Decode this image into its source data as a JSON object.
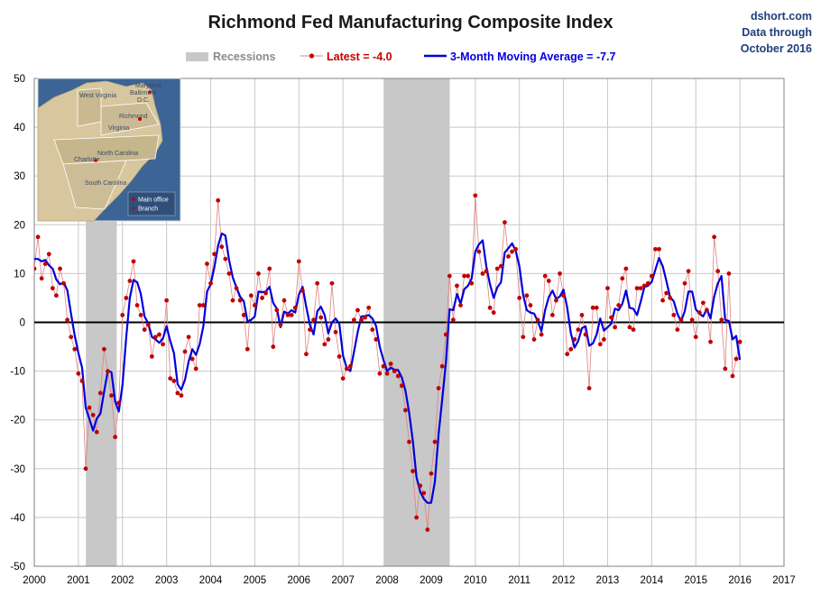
{
  "source": {
    "site": "dshort.com",
    "line1": "Data through",
    "line2": "October 2016"
  },
  "legend": {
    "recessions": "Recessions",
    "latest": "Latest = -4.0",
    "moving_avg": "3-Month Moving Average = -7.7"
  },
  "inset_map": {
    "labels": {
      "west_virginia": "West Virginia",
      "maryland": "Maryland",
      "baltimore": "Baltimore",
      "dc": "D.C.",
      "richmond": "Richmond",
      "virginia": "Virginia",
      "north_carolina": "North Carolina",
      "charlotte": "Charlotte",
      "south_carolina": "South Carolina",
      "main_office": "Main office",
      "branch": "Branch"
    }
  },
  "colors": {
    "monthly": "#c00000",
    "monthly_line": "#e08080",
    "moving_avg": "#0000dd",
    "recession": "#c8c8c8",
    "grid": "#c8c8c8",
    "zero_line": "#000000",
    "map_water": "#3c6494",
    "map_land": "#d8c79e"
  },
  "chart_data": {
    "type": "line",
    "title": "Richmond Fed Manufacturing Composite Index",
    "xlim": [
      2000,
      2017
    ],
    "ylim": [
      -50,
      50
    ],
    "x_ticks": [
      "2000",
      "2001",
      "2002",
      "2003",
      "2004",
      "2005",
      "2006",
      "2007",
      "2008",
      "2009",
      "2010",
      "2011",
      "2012",
      "2013",
      "2014",
      "2015",
      "2016",
      "2017"
    ],
    "y_ticks": [
      50,
      40,
      30,
      20,
      10,
      0,
      -10,
      -20,
      -30,
      -40,
      -50
    ],
    "grid": true,
    "legend_position": "top",
    "recessions": [
      [
        2001.17,
        2001.87
      ],
      [
        2007.92,
        2009.42
      ]
    ],
    "start": "2000-01",
    "series": [
      {
        "name": "Latest = -4.0",
        "kind": "monthly",
        "values": [
          11,
          17.5,
          9,
          12,
          14,
          7,
          5.5,
          11,
          8,
          0.5,
          -3,
          -5.5,
          -10.5,
          -12,
          -30,
          -17.5,
          -19,
          -22.5,
          -14.5,
          -5.5,
          -10,
          -15,
          -23.5,
          -16.5,
          1.5,
          5,
          8.5,
          12.5,
          3.5,
          1.5,
          -1.5,
          -0.5,
          -7,
          -3,
          -2.5,
          -4.5,
          4.5,
          -11.5,
          -12,
          -14.5,
          -15,
          -6,
          -3,
          -7.5,
          -9.5,
          3.5,
          3.5,
          12,
          8,
          14,
          25,
          15.5,
          13,
          10,
          4.5,
          7,
          4.5,
          1.5,
          -5.5,
          5.5,
          3.5,
          10,
          5,
          6,
          11,
          -5,
          2.5,
          -0.5,
          4.5,
          1.5,
          1.5,
          3,
          12.5,
          6.5,
          -6.5,
          -1.5,
          0.5,
          8,
          1,
          -4.5,
          -3.5,
          8,
          -2,
          -7,
          -11.5,
          -9.5,
          -9,
          0.5,
          2.5,
          0.5,
          1,
          3,
          -1.5,
          -3.5,
          -10.5,
          -9,
          -10.5,
          -8.5,
          -10,
          -11,
          -13,
          -18,
          -24.5,
          -30.5,
          -40,
          -33.5,
          -35,
          -42.5,
          -31,
          -24.5,
          -13.5,
          -9,
          -2.5,
          9.5,
          0.5,
          7.5,
          3.5,
          9.5,
          9.5,
          8,
          26,
          14.5,
          10,
          10.5,
          3,
          2,
          11,
          11.5,
          20.5,
          13.5,
          14.5,
          15,
          5,
          -3,
          5.5,
          3.5,
          -3.5,
          0.5,
          -2.5,
          9.5,
          8.5,
          1.5,
          4.5,
          10,
          5.5,
          -6.5,
          -5.5,
          -3.5,
          -1.5,
          1.5,
          -2.5,
          -13.5,
          3,
          3,
          -4.5,
          -3.5,
          7,
          1,
          -1,
          3.5,
          9,
          11,
          -1,
          -1.5,
          7,
          7,
          7.5,
          8,
          9.5,
          15,
          15,
          4.5,
          6,
          5,
          1.5,
          -1.5,
          0.5,
          8,
          10.5,
          0.5,
          -3,
          2,
          4,
          2.5,
          -4,
          17.5,
          10.5,
          0.5,
          -9.5,
          10,
          -11,
          -7.5,
          -4
        ]
      },
      {
        "name": "3-Month Moving Average = -7.7",
        "kind": "moving_average",
        "values": [
          13,
          13,
          12.5,
          12.8,
          11.7,
          11,
          8.8,
          7.8,
          8.2,
          6.5,
          1.8,
          -2.7,
          -6.3,
          -9.3,
          -17.5,
          -19.8,
          -22.2,
          -19.7,
          -18.7,
          -14.2,
          -10,
          -10.2,
          -16.2,
          -18.3,
          -12.8,
          -3.3,
          5,
          8.7,
          8.2,
          5.8,
          1.2,
          -0.2,
          -3,
          -3.5,
          -4.2,
          -3.3,
          -0.8,
          -3.8,
          -6.3,
          -12.7,
          -13.8,
          -11.8,
          -8,
          -5.5,
          -6.7,
          -4.5,
          -0.8,
          6.3,
          7.8,
          11.3,
          15.7,
          18.2,
          17.8,
          12.8,
          9.2,
          7.2,
          5.3,
          4.3,
          0.2,
          0.5,
          1.2,
          6.3,
          6.2,
          6.3,
          7.3,
          4,
          2.8,
          -1,
          2.2,
          1.8,
          2.5,
          2,
          5.7,
          7.3,
          3.2,
          -0.5,
          -2.5,
          2.3,
          3.2,
          1.5,
          -2.3,
          0,
          0.8,
          -0.3,
          -6.8,
          -9.3,
          -10,
          -6,
          -2,
          1.2,
          1.3,
          1.5,
          0.8,
          -0.7,
          -5,
          -7.7,
          -10,
          -9.3,
          -9.7,
          -9.8,
          -11.3,
          -14,
          -18.5,
          -24.3,
          -31.7,
          -34.7,
          -36.2,
          -37,
          -37,
          -32.7,
          -23,
          -15.7,
          -8.3,
          2.7,
          2.5,
          5.8,
          3.8,
          6.8,
          7.5,
          9,
          14.5,
          16,
          16.8,
          11.5,
          7.8,
          5,
          7.2,
          8.2,
          14.3,
          15.2,
          16.2,
          14.7,
          11.5,
          5.7,
          2.5,
          2,
          1.8,
          0.2,
          -1.8,
          2.5,
          5.2,
          6.5,
          4.8,
          5.3,
          6.7,
          3,
          -2.2,
          -5.2,
          -3.8,
          -1.2,
          -0.8,
          -4.8,
          -4.3,
          -2.5,
          0.8,
          -1.7,
          -1,
          -0.3,
          2.8,
          2.5,
          3.8,
          6.5,
          3,
          2.8,
          1.5,
          4.2,
          7.2,
          7.5,
          8.3,
          10.8,
          13.2,
          11.5,
          8.5,
          5.2,
          4.3,
          1.7,
          0.2,
          2.3,
          6.3,
          6.3,
          2.7,
          1.8,
          1.2,
          2.8,
          0.8,
          5.3,
          8,
          9.5,
          0.5,
          0.3,
          -3.5,
          -2.8,
          -7.7
        ]
      }
    ]
  }
}
